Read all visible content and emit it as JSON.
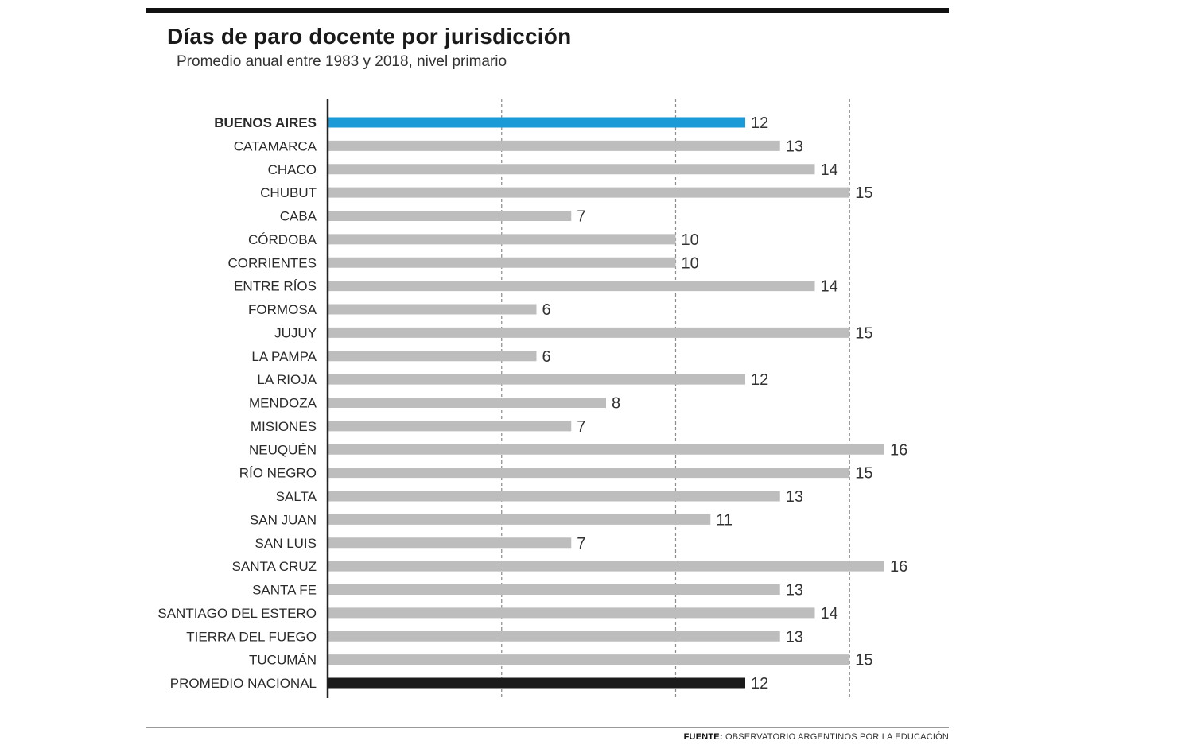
{
  "header": {
    "title": "Días de paro docente por jurisdicción",
    "subtitle": "Promedio anual entre 1983 y 2018, nivel primario"
  },
  "footer": {
    "source_label": "FUENTE:",
    "source_text": " OBSERVATORIO ARGENTINOS POR LA EDUCACIÓN"
  },
  "colors": {
    "highlight": "#1a9bd7",
    "default_bar": "#bdbdbd",
    "average_bar": "#1a1a1a",
    "axis": "#222222",
    "grid": "#8c8c8c"
  },
  "chart_data": {
    "type": "bar",
    "orientation": "horizontal",
    "title": "Días de paro docente por jurisdicción",
    "subtitle": "Promedio anual entre 1983 y 2018, nivel primario",
    "categories": [
      "BUENOS AIRES",
      "CATAMARCA",
      "CHACO",
      "CHUBUT",
      "CABA",
      "CÓRDOBA",
      "CORRIENTES",
      "ENTRE RÍOS",
      "FORMOSA",
      "JUJUY",
      "LA PAMPA",
      "LA RIOJA",
      "MENDOZA",
      "MISIONES",
      "NEUQUÉN",
      "RÍO NEGRO",
      "SALTA",
      "SAN JUAN",
      "SAN LUIS",
      "SANTA CRUZ",
      "SANTA FE",
      "SANTIAGO DEL ESTERO",
      "TIERRA DEL FUEGO",
      "TUCUMÁN",
      "PROMEDIO NACIONAL"
    ],
    "values": [
      12,
      13,
      14,
      15,
      7,
      10,
      10,
      14,
      6,
      15,
      6,
      12,
      8,
      7,
      16,
      15,
      13,
      11,
      7,
      16,
      13,
      14,
      13,
      15,
      12
    ],
    "highlight_categories": [
      "BUENOS AIRES"
    ],
    "average_categories": [
      "PROMEDIO NACIONAL"
    ],
    "xlim": [
      0,
      16
    ],
    "grid_values": [
      5,
      10,
      15
    ],
    "grid": true,
    "grid_style": "dashed",
    "xaxis_visible": false,
    "data_labels": true,
    "xlabel": "",
    "ylabel": ""
  }
}
